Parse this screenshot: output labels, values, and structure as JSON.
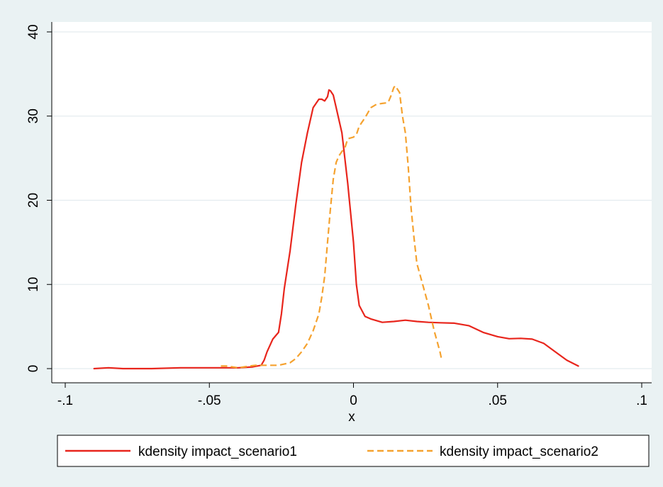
{
  "chart_data": {
    "type": "line",
    "title": "",
    "xlabel": "x",
    "ylabel": "",
    "xlim": [
      -0.1,
      0.1
    ],
    "ylim": [
      0,
      40
    ],
    "x_ticks": [
      -0.1,
      -0.05,
      0,
      0.05,
      0.1
    ],
    "x_tick_labels": [
      "-.1",
      "-.05",
      "0",
      ".05",
      ".1"
    ],
    "y_ticks": [
      0,
      10,
      20,
      30,
      40
    ],
    "y_tick_labels": [
      "0",
      "10",
      "20",
      "30",
      "40"
    ],
    "grid": "horizontal",
    "legend_position": "bottom",
    "series": [
      {
        "name": "kdensity impact_scenario1",
        "color": "#e8251c",
        "dash": "solid",
        "points": [
          [
            -0.09,
            0.0
          ],
          [
            -0.085,
            0.1
          ],
          [
            -0.08,
            0.0
          ],
          [
            -0.07,
            0.0
          ],
          [
            -0.06,
            0.1
          ],
          [
            -0.05,
            0.1
          ],
          [
            -0.04,
            0.1
          ],
          [
            -0.035,
            0.2
          ],
          [
            -0.032,
            0.4
          ],
          [
            -0.031,
            1.0
          ],
          [
            -0.03,
            2.0
          ],
          [
            -0.028,
            3.5
          ],
          [
            -0.026,
            4.3
          ],
          [
            -0.025,
            6.5
          ],
          [
            -0.024,
            9.5
          ],
          [
            -0.022,
            14.0
          ],
          [
            -0.02,
            19.5
          ],
          [
            -0.018,
            24.5
          ],
          [
            -0.016,
            28.0
          ],
          [
            -0.014,
            31.0
          ],
          [
            -0.012,
            32.0
          ],
          [
            -0.011,
            32.0
          ],
          [
            -0.01,
            31.8
          ],
          [
            -0.009,
            32.3
          ],
          [
            -0.0085,
            33.1
          ],
          [
            -0.008,
            33.0
          ],
          [
            -0.007,
            32.5
          ],
          [
            -0.006,
            31.0
          ],
          [
            -0.004,
            28.0
          ],
          [
            -0.002,
            22.0
          ],
          [
            0.0,
            15.0
          ],
          [
            0.001,
            10.0
          ],
          [
            0.002,
            7.5
          ],
          [
            0.004,
            6.2
          ],
          [
            0.006,
            5.9
          ],
          [
            0.01,
            5.5
          ],
          [
            0.014,
            5.6
          ],
          [
            0.018,
            5.75
          ],
          [
            0.022,
            5.6
          ],
          [
            0.026,
            5.5
          ],
          [
            0.03,
            5.45
          ],
          [
            0.035,
            5.4
          ],
          [
            0.04,
            5.1
          ],
          [
            0.045,
            4.3
          ],
          [
            0.05,
            3.8
          ],
          [
            0.054,
            3.55
          ],
          [
            0.058,
            3.6
          ],
          [
            0.062,
            3.5
          ],
          [
            0.066,
            3.0
          ],
          [
            0.07,
            2.0
          ],
          [
            0.074,
            1.0
          ],
          [
            0.078,
            0.3
          ]
        ]
      },
      {
        "name": "kdensity impact_scenario2",
        "color": "#f5a22f",
        "dash": "dashed",
        "points": [
          [
            -0.046,
            0.3
          ],
          [
            -0.044,
            0.3
          ],
          [
            -0.042,
            0.2
          ],
          [
            -0.04,
            0.1
          ],
          [
            -0.038,
            0.2
          ],
          [
            -0.036,
            0.3
          ],
          [
            -0.034,
            0.4
          ],
          [
            -0.03,
            0.4
          ],
          [
            -0.026,
            0.4
          ],
          [
            -0.022,
            0.7
          ],
          [
            -0.02,
            1.2
          ],
          [
            -0.018,
            2.0
          ],
          [
            -0.016,
            3.0
          ],
          [
            -0.014,
            4.5
          ],
          [
            -0.012,
            6.5
          ],
          [
            -0.011,
            8.5
          ],
          [
            -0.01,
            11.0
          ],
          [
            -0.009,
            15.0
          ],
          [
            -0.008,
            19.0
          ],
          [
            -0.007,
            22.5
          ],
          [
            -0.006,
            24.5
          ],
          [
            -0.005,
            25.3
          ],
          [
            -0.004,
            25.8
          ],
          [
            -0.003,
            26.2
          ],
          [
            -0.002,
            27.3
          ],
          [
            0.0,
            27.5
          ],
          [
            0.001,
            27.8
          ],
          [
            0.002,
            28.8
          ],
          [
            0.004,
            29.8
          ],
          [
            0.006,
            31.0
          ],
          [
            0.008,
            31.4
          ],
          [
            0.01,
            31.5
          ],
          [
            0.012,
            31.6
          ],
          [
            0.013,
            32.4
          ],
          [
            0.014,
            33.4
          ],
          [
            0.0145,
            33.6
          ],
          [
            0.016,
            32.8
          ],
          [
            0.017,
            30.0
          ],
          [
            0.018,
            28.0
          ],
          [
            0.019,
            24.0
          ],
          [
            0.02,
            19.0
          ],
          [
            0.021,
            15.5
          ],
          [
            0.022,
            12.5
          ],
          [
            0.024,
            10.0
          ],
          [
            0.026,
            7.5
          ],
          [
            0.028,
            4.5
          ],
          [
            0.03,
            2.0
          ],
          [
            0.0305,
            1.2
          ]
        ]
      }
    ]
  }
}
